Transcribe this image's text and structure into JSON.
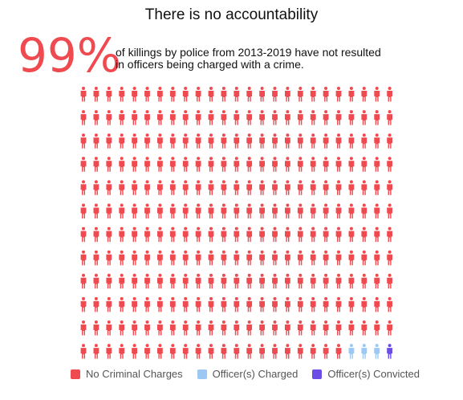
{
  "header": {
    "title": "There is no accountability",
    "big_stat": "99%",
    "subtitle": "of killings by police from 2013-2019 have not resulted\nin officers being charged with a crime."
  },
  "chart_data": {
    "type": "waffle",
    "rows": 12,
    "columns": 25,
    "unit_icon": "person-icon",
    "series": [
      {
        "name": "No Criminal Charges",
        "count": 296,
        "color": "#ee4a4f"
      },
      {
        "name": "Officer(s) Charged",
        "count": 3,
        "color": "#9cc8f3"
      },
      {
        "name": "Officer(s) Convicted",
        "count": 1,
        "color": "#6b4de6"
      }
    ]
  },
  "legend": [
    {
      "label": "No Criminal Charges",
      "color": "#ee4a4f"
    },
    {
      "label": "Officer(s) Charged",
      "color": "#9cc8f3"
    },
    {
      "label": "Officer(s) Convicted",
      "color": "#6b4de6"
    }
  ]
}
